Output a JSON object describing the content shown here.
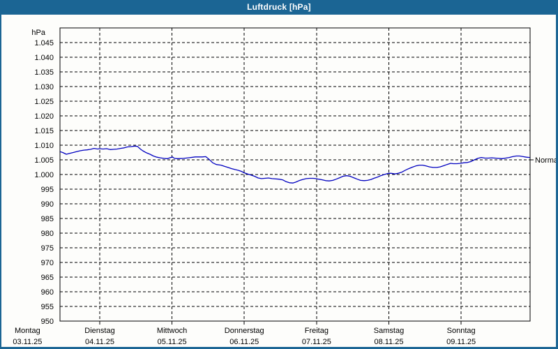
{
  "window": {
    "title": "Luftdruck [hPa]"
  },
  "colors": {
    "titlebar": "#1b6594",
    "titlebar_text": "#ffffff",
    "window_border": "#1b6594",
    "background": "#fdfdfb",
    "grid": "#000000",
    "axis": "#000000",
    "line": "#0000c0",
    "text": "#000000"
  },
  "chart_data": {
    "type": "line",
    "title": "Luftdruck [hPa]",
    "unit_label": "hPa",
    "grid": "dashed",
    "legend_position": "none",
    "ylim": [
      950,
      1050
    ],
    "ytick_step": 5,
    "yticks": [
      {
        "value": 1045,
        "label": "1.045"
      },
      {
        "value": 1040,
        "label": "1.040"
      },
      {
        "value": 1035,
        "label": "1.035"
      },
      {
        "value": 1030,
        "label": "1.030"
      },
      {
        "value": 1025,
        "label": "1.025"
      },
      {
        "value": 1020,
        "label": "1.020"
      },
      {
        "value": 1015,
        "label": "1.015"
      },
      {
        "value": 1010,
        "label": "1.010"
      },
      {
        "value": 1005,
        "label": "1.005"
      },
      {
        "value": 1000,
        "label": "1.000"
      },
      {
        "value": 995,
        "label": "995"
      },
      {
        "value": 990,
        "label": "990"
      },
      {
        "value": 985,
        "label": "985"
      },
      {
        "value": 980,
        "label": "980"
      },
      {
        "value": 975,
        "label": "975"
      },
      {
        "value": 970,
        "label": "970"
      },
      {
        "value": 965,
        "label": "965"
      },
      {
        "value": 960,
        "label": "960"
      },
      {
        "value": 955,
        "label": "955"
      },
      {
        "value": 950,
        "label": "950"
      }
    ],
    "xlim_hours_since_monday": [
      10.8,
      166.9
    ],
    "x_day_ticks": [
      {
        "hour": 0,
        "day": "Montag",
        "date": "03.11.25"
      },
      {
        "hour": 24,
        "day": "Dienstag",
        "date": "04.11.25"
      },
      {
        "hour": 48,
        "day": "Mittwoch",
        "date": "05.11.25"
      },
      {
        "hour": 72,
        "day": "Donnerstag",
        "date": "06.11.25"
      },
      {
        "hour": 96,
        "day": "Freitag",
        "date": "07.11.25"
      },
      {
        "hour": 120,
        "day": "Samstag",
        "date": "08.11.25"
      },
      {
        "hour": 144,
        "day": "Sonntag",
        "date": "09.11.25"
      }
    ],
    "annotations": [
      {
        "label": "Normal",
        "value": 1005
      }
    ],
    "series": [
      {
        "name": "Luftdruck",
        "color": "#0000c0",
        "points": [
          [
            10.8,
            1007.8
          ],
          [
            11.7,
            1007.5
          ],
          [
            12.9,
            1006.9
          ],
          [
            14.0,
            1007.2
          ],
          [
            15.2,
            1007.5
          ],
          [
            16.3,
            1007.8
          ],
          [
            17.5,
            1008.1
          ],
          [
            18.7,
            1008.3
          ],
          [
            19.8,
            1008.4
          ],
          [
            21.0,
            1008.6
          ],
          [
            22.1,
            1008.9
          ],
          [
            23.3,
            1008.7
          ],
          [
            24.0,
            1008.8
          ],
          [
            25.1,
            1008.7
          ],
          [
            26.3,
            1008.8
          ],
          [
            27.5,
            1008.5
          ],
          [
            28.6,
            1008.6
          ],
          [
            29.8,
            1008.7
          ],
          [
            30.9,
            1008.9
          ],
          [
            32.1,
            1009.1
          ],
          [
            33.2,
            1009.4
          ],
          [
            34.4,
            1009.5
          ],
          [
            35.6,
            1009.7
          ],
          [
            36.5,
            1009.6
          ],
          [
            37.6,
            1008.6
          ],
          [
            38.3,
            1008.1
          ],
          [
            39.5,
            1007.4
          ],
          [
            40.7,
            1006.9
          ],
          [
            41.8,
            1006.3
          ],
          [
            43.0,
            1005.9
          ],
          [
            44.1,
            1005.7
          ],
          [
            45.3,
            1005.5
          ],
          [
            46.5,
            1005.4
          ],
          [
            47.6,
            1005.8
          ],
          [
            48.1,
            1006.0
          ],
          [
            48.8,
            1005.5
          ],
          [
            49.9,
            1005.4
          ],
          [
            51.8,
            1005.5
          ],
          [
            53.4,
            1005.7
          ],
          [
            55.7,
            1006.0
          ],
          [
            58.0,
            1006.0
          ],
          [
            59.2,
            1006.1
          ],
          [
            60.3,
            1005.2
          ],
          [
            61.5,
            1004.0
          ],
          [
            62.7,
            1003.4
          ],
          [
            64.3,
            1003.2
          ],
          [
            65.4,
            1002.8
          ],
          [
            66.6,
            1002.4
          ],
          [
            67.8,
            1002.0
          ],
          [
            68.9,
            1001.7
          ],
          [
            70.1,
            1001.4
          ],
          [
            71.2,
            1001.0
          ],
          [
            71.9,
            1000.6
          ],
          [
            73.1,
            1000.2
          ],
          [
            74.2,
            999.8
          ],
          [
            75.4,
            999.4
          ],
          [
            76.6,
            998.8
          ],
          [
            77.7,
            998.6
          ],
          [
            80.0,
            998.8
          ],
          [
            81.2,
            998.6
          ],
          [
            83.5,
            998.4
          ],
          [
            84.7,
            998.2
          ],
          [
            85.8,
            997.6
          ],
          [
            87.0,
            997.2
          ],
          [
            88.1,
            997.1
          ],
          [
            89.1,
            997.4
          ],
          [
            90.2,
            997.9
          ],
          [
            91.4,
            998.3
          ],
          [
            92.6,
            998.6
          ],
          [
            93.7,
            998.7
          ],
          [
            94.9,
            998.7
          ],
          [
            95.8,
            998.6
          ],
          [
            96.7,
            998.4
          ],
          [
            97.9,
            998.2
          ],
          [
            99.0,
            997.9
          ],
          [
            100.2,
            997.8
          ],
          [
            101.4,
            998.0
          ],
          [
            102.5,
            998.4
          ],
          [
            103.7,
            998.9
          ],
          [
            104.8,
            999.4
          ],
          [
            106.0,
            999.6
          ],
          [
            107.1,
            999.4
          ],
          [
            108.3,
            998.9
          ],
          [
            109.5,
            998.4
          ],
          [
            110.6,
            998.0
          ],
          [
            111.8,
            997.9
          ],
          [
            112.9,
            998.0
          ],
          [
            114.1,
            998.3
          ],
          [
            115.0,
            998.7
          ],
          [
            116.2,
            999.1
          ],
          [
            117.3,
            999.6
          ],
          [
            118.5,
            1000.0
          ],
          [
            119.9,
            1000.4
          ],
          [
            120.8,
            1000.4
          ],
          [
            122.0,
            1000.2
          ],
          [
            123.1,
            1000.4
          ],
          [
            124.3,
            1000.8
          ],
          [
            125.4,
            1001.4
          ],
          [
            126.6,
            1002.0
          ],
          [
            127.8,
            1002.5
          ],
          [
            128.9,
            1002.9
          ],
          [
            130.1,
            1003.2
          ],
          [
            131.2,
            1003.2
          ],
          [
            132.4,
            1002.9
          ],
          [
            133.5,
            1002.6
          ],
          [
            134.7,
            1002.4
          ],
          [
            135.9,
            1002.4
          ],
          [
            137.0,
            1002.6
          ],
          [
            138.2,
            1003.0
          ],
          [
            139.3,
            1003.4
          ],
          [
            140.5,
            1003.8
          ],
          [
            141.4,
            1003.7
          ],
          [
            142.6,
            1003.7
          ],
          [
            143.8,
            1003.8
          ],
          [
            144.9,
            1004.0
          ],
          [
            146.1,
            1004.1
          ],
          [
            147.2,
            1004.4
          ],
          [
            148.4,
            1005.0
          ],
          [
            149.5,
            1005.5
          ],
          [
            150.7,
            1005.8
          ],
          [
            151.9,
            1005.6
          ],
          [
            153.0,
            1005.6
          ],
          [
            154.2,
            1005.7
          ],
          [
            155.3,
            1005.6
          ],
          [
            156.5,
            1005.5
          ],
          [
            157.6,
            1005.4
          ],
          [
            158.8,
            1005.6
          ],
          [
            160.0,
            1005.8
          ],
          [
            161.1,
            1006.1
          ],
          [
            162.3,
            1006.3
          ],
          [
            163.4,
            1006.3
          ],
          [
            164.6,
            1006.1
          ],
          [
            165.7,
            1005.9
          ],
          [
            166.7,
            1005.8
          ]
        ]
      }
    ]
  }
}
